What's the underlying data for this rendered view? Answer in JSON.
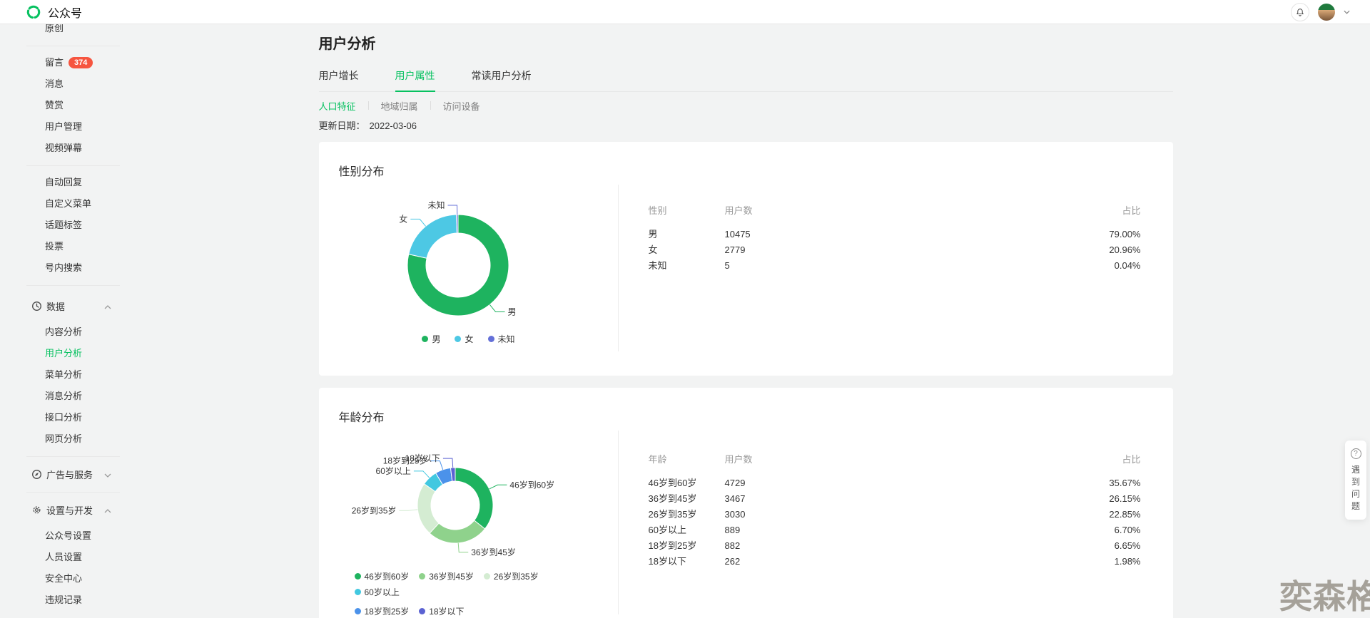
{
  "header": {
    "brand": "公众号"
  },
  "sidebar": {
    "clipped_top_item": "原创",
    "blocks": [
      {
        "type": "items",
        "items": [
          {
            "label": "留言",
            "badge": "374"
          },
          {
            "label": "消息"
          },
          {
            "label": "赞赏"
          },
          {
            "label": "用户管理"
          },
          {
            "label": "视频弹幕"
          }
        ]
      },
      {
        "type": "items",
        "items": [
          {
            "label": "自动回复"
          },
          {
            "label": "自定义菜单"
          },
          {
            "label": "话题标签"
          },
          {
            "label": "投票"
          },
          {
            "label": "号内搜索"
          }
        ]
      },
      {
        "type": "section",
        "label": "数据",
        "icon": "clock-icon",
        "chevron": "up",
        "mt": "mt12",
        "items": [
          {
            "label": "内容分析"
          },
          {
            "label": "用户分析",
            "active": true
          },
          {
            "label": "菜单分析"
          },
          {
            "label": "消息分析"
          },
          {
            "label": "接口分析"
          },
          {
            "label": "网页分析"
          }
        ]
      },
      {
        "type": "section",
        "label": "广告与服务",
        "icon": "compass-icon",
        "chevron": "down",
        "mt": "mt8",
        "items": []
      },
      {
        "type": "section",
        "label": "设置与开发",
        "icon": "gear-icon",
        "chevron": "up",
        "mt": "mt6",
        "items": [
          {
            "label": "公众号设置"
          },
          {
            "label": "人员设置"
          },
          {
            "label": "安全中心"
          },
          {
            "label": "违规记录"
          }
        ]
      }
    ]
  },
  "page": {
    "title": "用户分析",
    "tabs": [
      "用户增长",
      "用户属性",
      "常读用户分析"
    ],
    "active_tab": "用户属性",
    "subtabs": [
      "人口特征",
      "地域归属",
      "访问设备"
    ],
    "active_subtab": "人口特征",
    "update_label": "更新日期：",
    "update_date": "2022-03-06"
  },
  "chart_data": [
    {
      "type": "pie",
      "donut": true,
      "title": "性别分布",
      "categories": [
        "男",
        "女",
        "未知"
      ],
      "values": [
        10475,
        2779,
        5
      ],
      "percents": [
        "79.00%",
        "20.96%",
        "0.04%"
      ],
      "colors": [
        "#1eb35f",
        "#4dc8e4",
        "#6470d8"
      ],
      "legend_position": "bottom-center",
      "legend_rows": [
        [
          "男",
          "女",
          "未知"
        ]
      ],
      "table": {
        "headers": [
          "性别",
          "用户数",
          "占比"
        ],
        "rows": [
          [
            "男",
            "10475",
            "79.00%"
          ],
          [
            "女",
            "2779",
            "20.96%"
          ],
          [
            "未知",
            "5",
            "0.04%"
          ]
        ]
      }
    },
    {
      "type": "pie",
      "donut": true,
      "title": "年龄分布",
      "categories": [
        "46岁到60岁",
        "36岁到45岁",
        "26岁到35岁",
        "60岁以上",
        "18岁到25岁",
        "18岁以下"
      ],
      "values": [
        4729,
        3467,
        3030,
        889,
        882,
        262
      ],
      "percents": [
        "35.67%",
        "26.15%",
        "22.85%",
        "6.70%",
        "6.65%",
        "1.98%"
      ],
      "colors": [
        "#1eb35f",
        "#8fd28c",
        "#d4ecd2",
        "#41c8e0",
        "#4b92ea",
        "#5b62d2"
      ],
      "legend_position": "bottom-left",
      "legend_rows": [
        [
          "46岁到60岁",
          "36岁到45岁",
          "26岁到35岁",
          "60岁以上"
        ],
        [
          "18岁到25岁",
          "18岁以下"
        ]
      ],
      "table": {
        "headers": [
          "年龄",
          "用户数",
          "占比"
        ],
        "rows": [
          [
            "46岁到60岁",
            "4729",
            "35.67%"
          ],
          [
            "36岁到45岁",
            "3467",
            "26.15%"
          ],
          [
            "26岁到35岁",
            "3030",
            "22.85%"
          ],
          [
            "60岁以上",
            "889",
            "6.70%"
          ],
          [
            "18岁到25岁",
            "882",
            "6.65%"
          ],
          [
            "18岁以下",
            "262",
            "1.98%"
          ]
        ]
      }
    }
  ],
  "help_widget": {
    "label": "遇到问题"
  },
  "watermark": "奕森格",
  "colors": {
    "accent": "#07c160",
    "badge": "#f6553f"
  }
}
